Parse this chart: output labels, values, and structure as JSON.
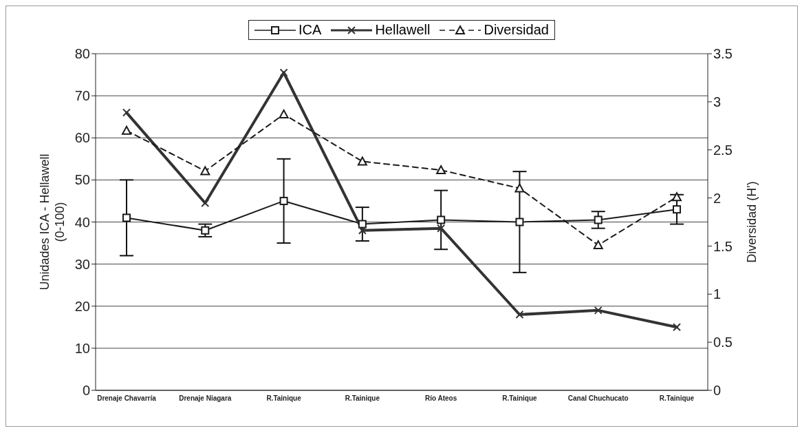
{
  "chart_data": {
    "type": "line",
    "categories": [
      "Drenaje Chavarría",
      "Drenaje Niagara",
      "R.Tainique",
      "R.Tainique",
      "Río Ateos",
      "R.Tainique",
      "Canal Chuchucato",
      "R.Tainique"
    ],
    "series": [
      {
        "name": "ICA",
        "color": "#1a1a1a",
        "values": [
          41,
          38,
          45,
          39.5,
          40.5,
          40,
          40.5,
          43
        ],
        "errors": [
          9,
          1.5,
          10,
          4,
          7,
          12,
          2,
          3.5
        ],
        "marker": "square",
        "line_style": "solid"
      },
      {
        "name": "Hellawell",
        "color": "#333333",
        "values": [
          66,
          44.5,
          75.5,
          38,
          38.5,
          18,
          19,
          15
        ],
        "marker": "cross",
        "line_style": "solid"
      },
      {
        "name": "Diversidad",
        "color": "#1a1a1a",
        "axis": "y2",
        "values": [
          2.7,
          2.28,
          2.87,
          2.38,
          2.29,
          2.1,
          1.51,
          2.01
        ],
        "marker": "triangle",
        "line_style": "dashed"
      }
    ],
    "ylabel": "Unidades ICA - Hellawell (0-100)",
    "y2label": "Diversidad (H')",
    "ylim": [
      0,
      80
    ],
    "yticks": [
      0,
      10,
      20,
      30,
      40,
      50,
      60,
      70,
      80
    ],
    "y2lim": [
      0,
      3.5
    ],
    "y2ticks": [
      0,
      0.5,
      1,
      1.5,
      2,
      2.5,
      3,
      3.5
    ],
    "grid": "y",
    "legend": "top"
  }
}
